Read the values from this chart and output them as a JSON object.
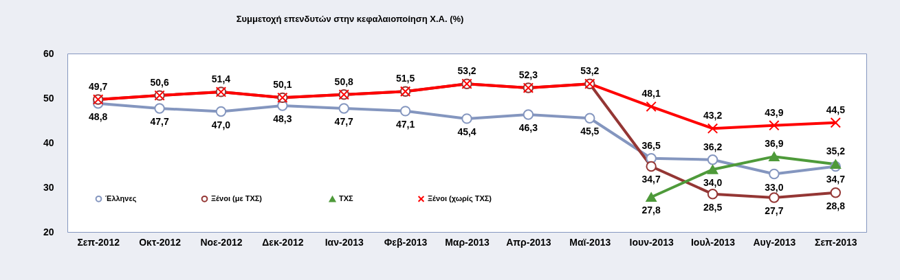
{
  "chart_data": {
    "type": "line",
    "title": "Συμμετοχή επενδυτών στην κεφαλαιοποίηση Χ.Α. (%)",
    "categories": [
      "Σεπ-2012",
      "Οκτ-2012",
      "Νοε-2012",
      "Δεκ-2012",
      "Ιαν-2013",
      "Φεβ-2013",
      "Μαρ-2013",
      "Απρ-2013",
      "Μαϊ-2013",
      "Ιουν-2013",
      "Ιουλ-2013",
      "Αυγ-2013",
      "Σεπ-2013"
    ],
    "series": [
      {
        "name": "Έλληνες",
        "color": "#8496bf",
        "marker": "circle",
        "values": [
          48.8,
          47.7,
          47.0,
          48.3,
          47.7,
          47.1,
          45.4,
          46.3,
          45.5,
          36.5,
          36.2,
          33.0,
          34.7
        ],
        "value_labels": [
          "48,8",
          "47,7",
          "47,0",
          "48,3",
          "47,7",
          "47,1",
          "45,4",
          "46,3",
          "45,5",
          "36,5",
          "36,2",
          "33,0",
          "34,7"
        ]
      },
      {
        "name": "Ξένοι  (με ΤΧΣ)",
        "color": "#943634",
        "marker": "circle",
        "values": [
          49.7,
          50.6,
          51.4,
          50.1,
          50.8,
          51.5,
          53.2,
          52.3,
          53.2,
          34.7,
          28.5,
          27.7,
          28.8
        ],
        "value_labels": [
          null,
          null,
          null,
          null,
          null,
          null,
          null,
          null,
          null,
          "34,7",
          "28,5",
          "27,7",
          "28,8"
        ]
      },
      {
        "name": "ΤΧΣ",
        "color": "#4e9a3a",
        "marker": "triangle",
        "values": [
          null,
          null,
          null,
          null,
          null,
          null,
          null,
          null,
          null,
          27.8,
          34.0,
          36.9,
          35.2
        ],
        "value_labels": [
          null,
          null,
          null,
          null,
          null,
          null,
          null,
          null,
          null,
          "27,8",
          "34,0",
          "36,9",
          "35,2"
        ]
      },
      {
        "name": "Ξένοι  (χωρίς ΤΧΣ)",
        "color": "#ff0000",
        "marker": "cross",
        "values": [
          49.7,
          50.6,
          51.4,
          50.1,
          50.8,
          51.5,
          53.2,
          52.3,
          53.2,
          48.1,
          43.2,
          43.9,
          44.5
        ],
        "value_labels": [
          "49,7",
          "50,6",
          "51,4",
          "50,1",
          "50,8",
          "51,5",
          "53,2",
          "52,3",
          "53,2",
          "48,1",
          "43,2",
          "43,9",
          "44,5"
        ]
      }
    ],
    "ylim": [
      20,
      60
    ],
    "yticks": [
      20,
      30,
      40,
      50,
      60
    ],
    "grid": false,
    "legend": "bottom left"
  }
}
